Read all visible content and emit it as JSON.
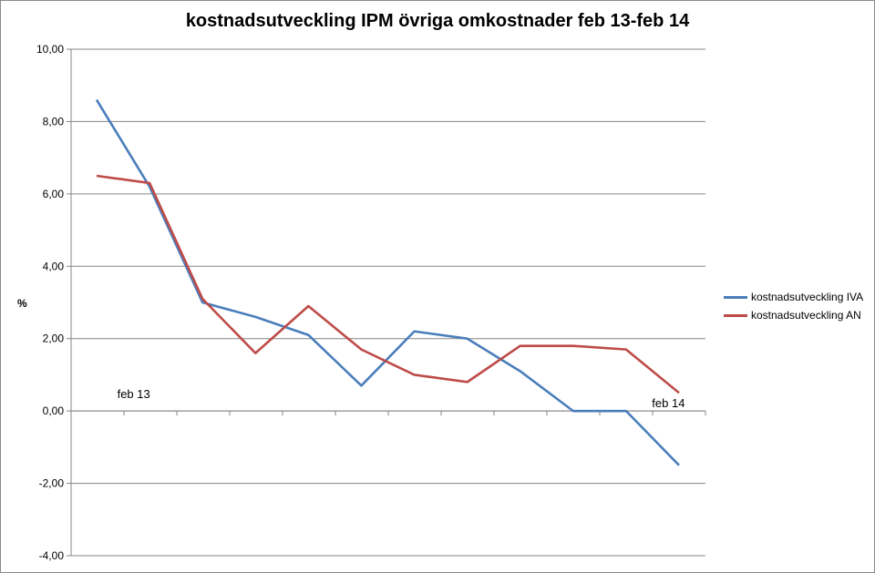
{
  "chart_data": {
    "type": "line",
    "title": "kostnadsutveckling IPM övriga omkostnader feb 13-feb 14",
    "ylabel": "%",
    "ylim": [
      -4,
      10
    ],
    "ytick_labels": [
      "-4,00",
      "-2,00",
      "0,00",
      "2,00",
      "4,00",
      "6,00",
      "8,00",
      "10,00"
    ],
    "ytick_values": [
      -4,
      -2,
      0,
      2,
      4,
      6,
      8,
      10
    ],
    "x": [
      1,
      2,
      3,
      4,
      5,
      6,
      7,
      8,
      9,
      10,
      11,
      12
    ],
    "series": [
      {
        "name": "kostnadsutveckling IVA",
        "color": "#4a7ebb",
        "values": [
          8.6,
          6.2,
          3.0,
          2.6,
          2.1,
          0.7,
          2.2,
          2.0,
          1.1,
          0.0,
          0.0,
          -1.5
        ]
      },
      {
        "name": "kostnadsutveckling AN",
        "color": "#be4b48",
        "values": [
          6.5,
          6.3,
          3.1,
          1.6,
          2.9,
          1.7,
          1.0,
          0.8,
          1.8,
          1.8,
          1.7,
          0.5
        ]
      }
    ],
    "annotations": [
      {
        "text": "feb 13",
        "x": 1.7,
        "y": 0.35
      },
      {
        "text": "feb 14",
        "x": 11.8,
        "y": 0.1
      }
    ],
    "grid": true,
    "legend": "right"
  }
}
